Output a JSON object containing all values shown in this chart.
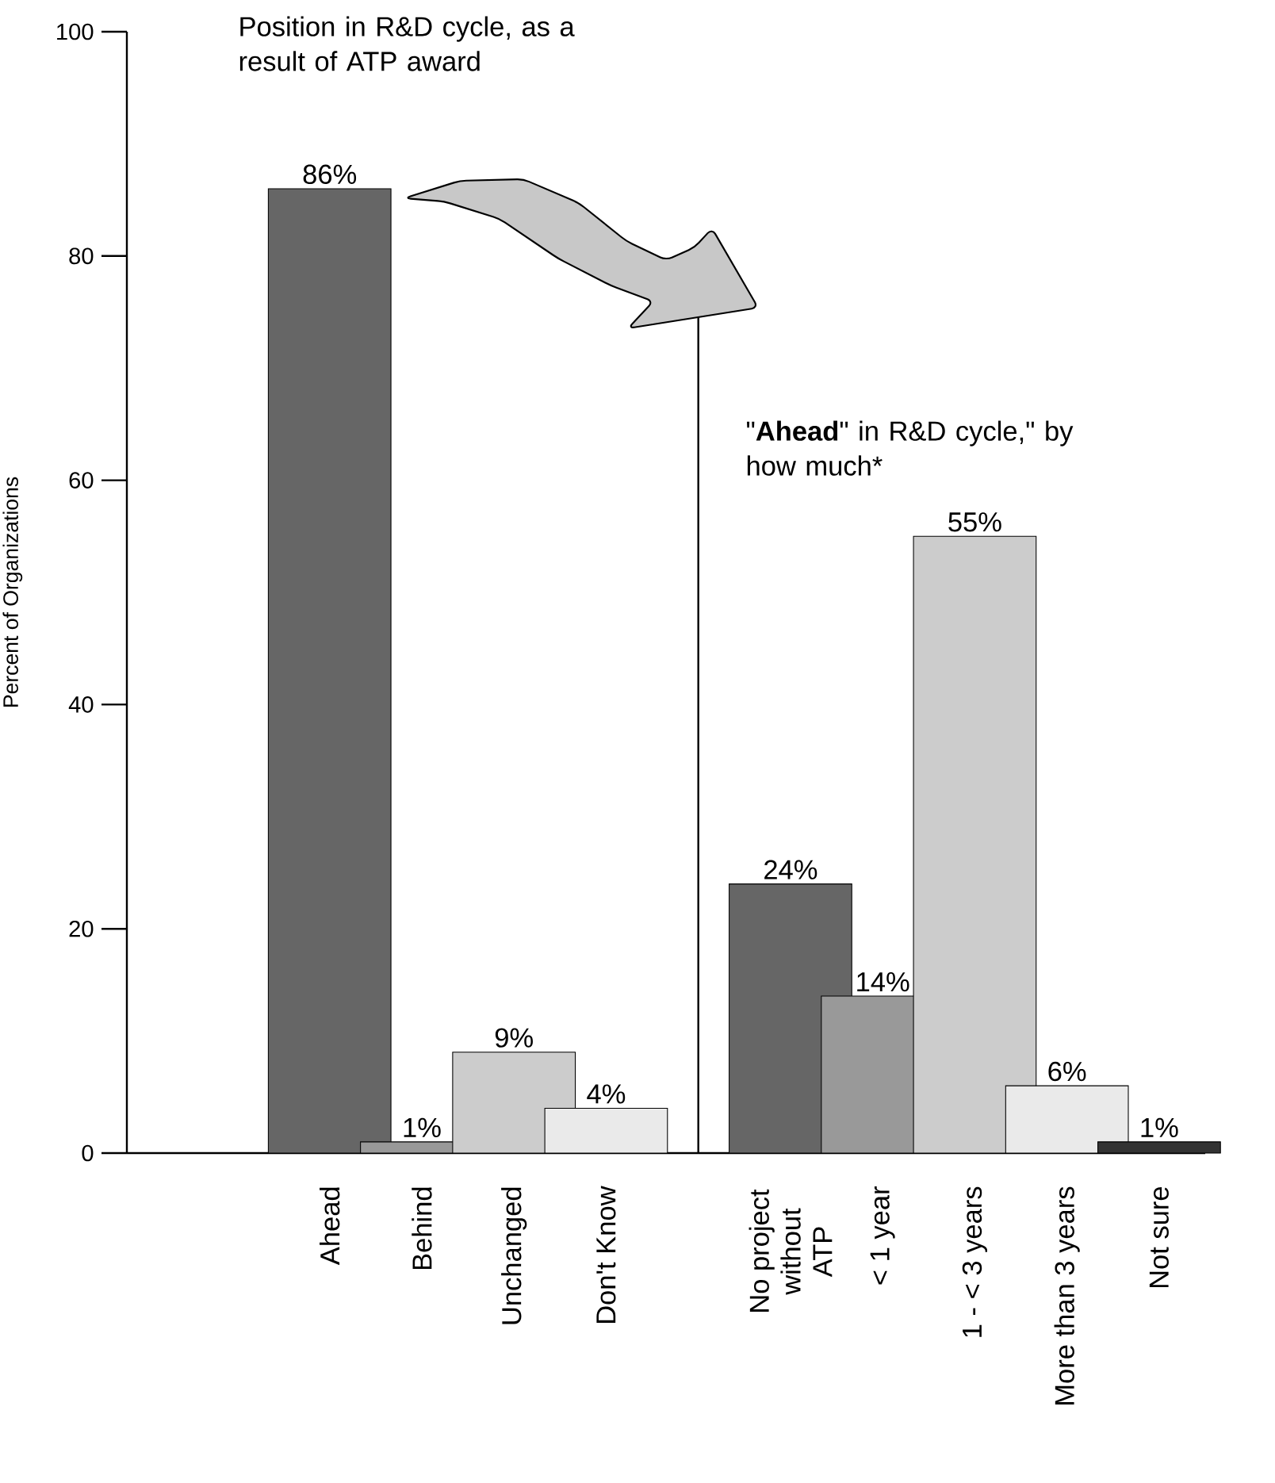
{
  "chart_data": {
    "type": "bar",
    "ylabel": "Percent of Organizations",
    "annotations": [
      "Position in R&D cycle, as a result of ATP award",
      "\"**Ahead**\" in R&D cycle,\" by how much*"
    ],
    "categories": [
      null,
      "Ahead",
      "Behind",
      "Unchanged",
      "Don't Know",
      null,
      "No project without ATP",
      "< 1 year",
      "1 - < 3 years",
      "More than 3 years",
      "Not sure"
    ],
    "values": [
      null,
      86,
      1,
      9,
      4,
      null,
      24,
      14,
      55,
      6,
      1
    ],
    "colors": [
      null,
      "#666666",
      "#999999",
      "#cccccc",
      "#eaeaea",
      null,
      "#666666",
      "#999999",
      "#cccccc",
      "#eaeaea",
      "#333333"
    ],
    "value_labels": [
      null,
      "86%",
      "1%",
      "9%",
      "4%",
      null,
      "24%",
      "14%",
      "55%",
      "6%",
      "1%"
    ],
    "ylim": [
      0,
      100
    ],
    "yticks": [
      0,
      20,
      40,
      60,
      80,
      100
    ]
  }
}
